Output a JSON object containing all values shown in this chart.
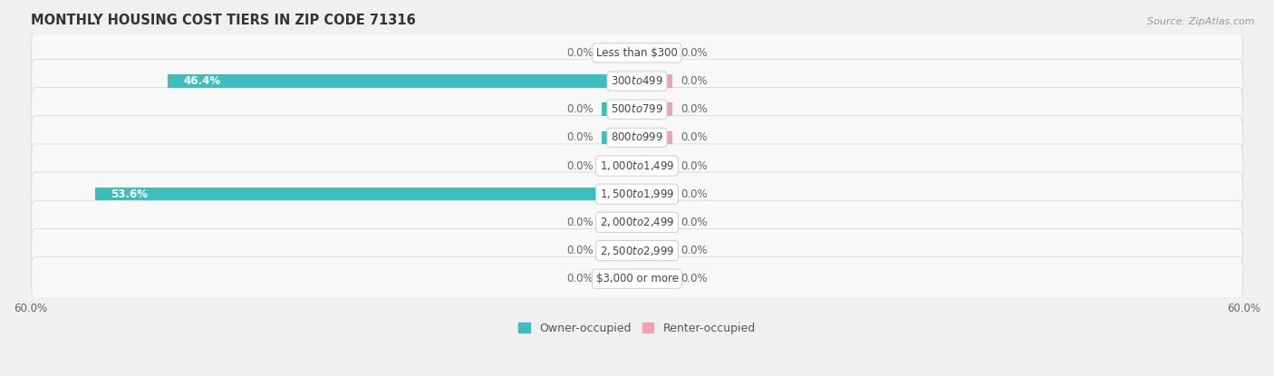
{
  "title": "MONTHLY HOUSING COST TIERS IN ZIP CODE 71316",
  "source": "Source: ZipAtlas.com",
  "categories": [
    "Less than $300",
    "$300 to $499",
    "$500 to $799",
    "$800 to $999",
    "$1,000 to $1,499",
    "$1,500 to $1,999",
    "$2,000 to $2,499",
    "$2,500 to $2,999",
    "$3,000 or more"
  ],
  "owner_values": [
    0.0,
    46.4,
    0.0,
    0.0,
    0.0,
    53.6,
    0.0,
    0.0,
    0.0
  ],
  "renter_values": [
    0.0,
    0.0,
    0.0,
    0.0,
    0.0,
    0.0,
    0.0,
    0.0,
    0.0
  ],
  "owner_color": "#3DBDBD",
  "renter_color": "#F4A0B4",
  "axis_max": 60.0,
  "stub_size": 3.5,
  "bg_color": "#f0f0f0",
  "row_bg_color": "#f8f8f8",
  "label_fontsize": 8.5,
  "title_fontsize": 10.5,
  "legend_fontsize": 9,
  "axis_label_fontsize": 8.5,
  "center_label_color": "#444444",
  "value_label_color_outside": "#666666",
  "value_label_color_inside": "#ffffff"
}
